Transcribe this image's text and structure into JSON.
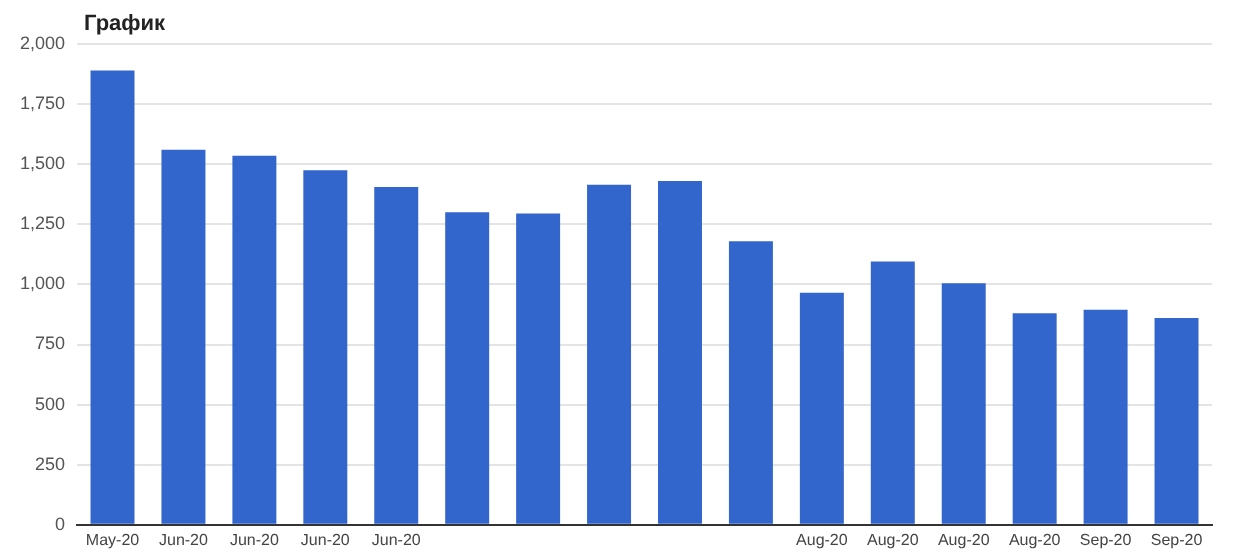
{
  "chart_data": {
    "type": "bar",
    "title": "График",
    "categories": [
      "May-20",
      "Jun-20",
      "Jun-20",
      "Jun-20",
      "Jun-20",
      null,
      null,
      null,
      null,
      null,
      "Aug-20",
      "Aug-20",
      "Aug-20",
      "Aug-20",
      "Sep-20",
      "Sep-20"
    ],
    "values": [
      1890,
      1560,
      1535,
      1475,
      1405,
      1300,
      1295,
      1415,
      1430,
      1180,
      965,
      1095,
      1005,
      880,
      895,
      860
    ],
    "color": "#3366cc",
    "ylim": [
      0,
      2000
    ],
    "yticks": [
      0,
      250,
      500,
      750,
      {
        "value": 1000,
        "label": "1,000"
      },
      {
        "value": 1250,
        "label": "1,250"
      },
      {
        "value": 1500,
        "label": "1,500"
      },
      {
        "value": 1750,
        "label": "1,750"
      },
      {
        "value": 2000,
        "label": "2,000"
      }
    ],
    "grid": "y",
    "legend": false
  }
}
